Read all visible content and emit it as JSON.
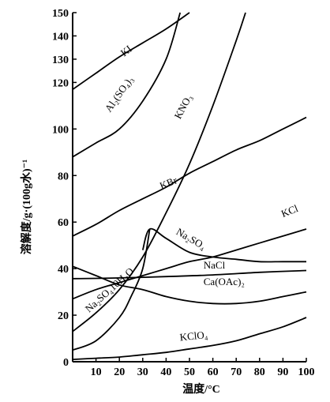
{
  "chart_data": {
    "type": "line",
    "title": "",
    "xlabel": "温度/°C",
    "ylabel": "溶解度/g·(100g水)⁻¹",
    "xlim": [
      0,
      100
    ],
    "ylim": [
      0,
      150
    ],
    "x_ticks": [
      "0",
      "10",
      "20",
      "30",
      "40",
      "50",
      "60",
      "70",
      "80",
      "90",
      "100"
    ],
    "y_ticks": [
      "0",
      "20",
      "40",
      "60",
      "80",
      "100",
      "120",
      "130",
      "140",
      "150"
    ],
    "grid": false,
    "series": [
      {
        "name": "KI",
        "label": "KI",
        "label_at": [
          22,
          131
        ],
        "label_angle": -38,
        "points": [
          [
            0,
            117
          ],
          [
            10,
            124
          ],
          [
            20,
            131
          ],
          [
            30,
            137
          ],
          [
            40,
            143
          ],
          [
            50,
            150
          ]
        ]
      },
      {
        "name": "Al₂(SO₄)₃",
        "label": "Al₂(SO₄)₃",
        "label_at": [
          16,
          107
        ],
        "label_angle": -55,
        "points": [
          [
            0,
            88
          ],
          [
            10,
            94
          ],
          [
            20,
            100
          ],
          [
            30,
            112
          ],
          [
            40,
            130
          ],
          [
            46,
            150
          ]
        ]
      },
      {
        "name": "KNO₃",
        "label": "KNO₃",
        "label_at": [
          46,
          104
        ],
        "label_angle": -62,
        "points": [
          [
            0,
            13
          ],
          [
            10,
            21
          ],
          [
            20,
            31
          ],
          [
            30,
            45
          ],
          [
            40,
            64
          ],
          [
            50,
            85
          ],
          [
            60,
            110
          ],
          [
            70,
            138
          ],
          [
            74,
            150
          ]
        ]
      },
      {
        "name": "KBr",
        "label": "KBr",
        "label_at": [
          38,
          74
        ],
        "label_angle": -22,
        "points": [
          [
            0,
            54
          ],
          [
            10,
            59
          ],
          [
            20,
            65
          ],
          [
            30,
            70
          ],
          [
            40,
            75
          ],
          [
            50,
            81
          ],
          [
            60,
            86
          ],
          [
            70,
            91
          ],
          [
            80,
            95
          ],
          [
            90,
            100
          ],
          [
            100,
            105
          ]
        ]
      },
      {
        "name": "Na₂SO₄",
        "label": "Na₂SO₄",
        "label_at": [
          44,
          55
        ],
        "label_angle": 30,
        "points": [
          [
            30,
            48
          ],
          [
            33,
            57
          ],
          [
            40,
            53
          ],
          [
            50,
            47
          ],
          [
            60,
            45
          ],
          [
            70,
            44
          ],
          [
            80,
            43
          ],
          [
            90,
            43
          ],
          [
            100,
            43
          ]
        ]
      },
      {
        "name": "Na₂SO₄·10H₂O",
        "label": "Na₂SO₄10H₂O",
        "label_at": [
          7,
          21
        ],
        "label_angle": -42,
        "points": [
          [
            0,
            5
          ],
          [
            10,
            9
          ],
          [
            20,
            19
          ],
          [
            25,
            28
          ],
          [
            30,
            40
          ],
          [
            33,
            57
          ]
        ]
      },
      {
        "name": "KCl",
        "label": "KCl",
        "label_at": [
          90,
          62
        ],
        "label_angle": -22,
        "points": [
          [
            0,
            27
          ],
          [
            10,
            31
          ],
          [
            20,
            34
          ],
          [
            30,
            37
          ],
          [
            40,
            40
          ],
          [
            50,
            43
          ],
          [
            60,
            45
          ],
          [
            70,
            48
          ],
          [
            80,
            51
          ],
          [
            90,
            54
          ],
          [
            100,
            57
          ]
        ]
      },
      {
        "name": "NaCl",
        "label": "NaCl",
        "label_at": [
          56,
          40
        ],
        "label_angle": 0,
        "points": [
          [
            0,
            35.7
          ],
          [
            20,
            36
          ],
          [
            40,
            36.6
          ],
          [
            60,
            37.3
          ],
          [
            80,
            38.4
          ],
          [
            100,
            39.2
          ]
        ]
      },
      {
        "name": "Ca(OAc)₂",
        "label": "Ca(OAc)₂",
        "label_at": [
          56,
          33
        ],
        "label_angle": 0,
        "points": [
          [
            0,
            41
          ],
          [
            10,
            37
          ],
          [
            20,
            33
          ],
          [
            30,
            31
          ],
          [
            40,
            28
          ],
          [
            50,
            26
          ],
          [
            60,
            25
          ],
          [
            70,
            25
          ],
          [
            80,
            26
          ],
          [
            90,
            28
          ],
          [
            100,
            30
          ]
        ]
      },
      {
        "name": "KClO₄",
        "label": "KClO₄",
        "label_at": [
          46,
          9
        ],
        "label_angle": -6,
        "points": [
          [
            0,
            1
          ],
          [
            10,
            1.5
          ],
          [
            20,
            2
          ],
          [
            30,
            3
          ],
          [
            40,
            4
          ],
          [
            50,
            5.5
          ],
          [
            60,
            7
          ],
          [
            70,
            9
          ],
          [
            80,
            12
          ],
          [
            90,
            15
          ],
          [
            100,
            19
          ]
        ]
      }
    ]
  }
}
